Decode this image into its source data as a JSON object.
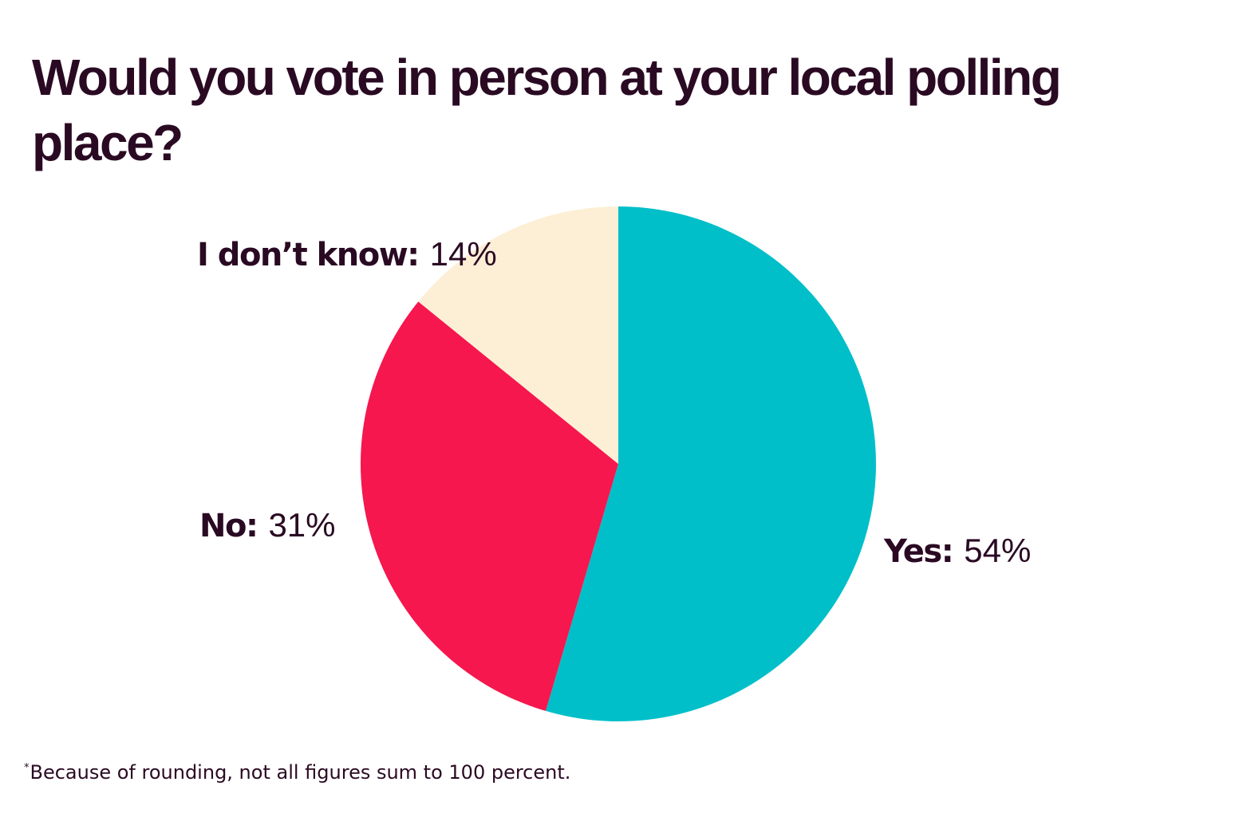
{
  "chart_data": {
    "type": "pie",
    "title": "Would you vote in person at your local polling place?",
    "categories": [
      "Yes",
      "No",
      "I don’t know"
    ],
    "values": [
      54,
      31,
      14
    ],
    "labels": [
      {
        "category": "Yes:",
        "value": "54%"
      },
      {
        "category": "No:",
        "value": "31%"
      },
      {
        "category": "I don’t know:",
        "value": "14%"
      }
    ],
    "colors": [
      "#00bfc9",
      "#f5174e",
      "#fcefd5"
    ],
    "start": "12 o'clock, clockwise",
    "footnote_marker": "*",
    "footnote": "Because of rounding, not all figures sum to 100 percent."
  }
}
